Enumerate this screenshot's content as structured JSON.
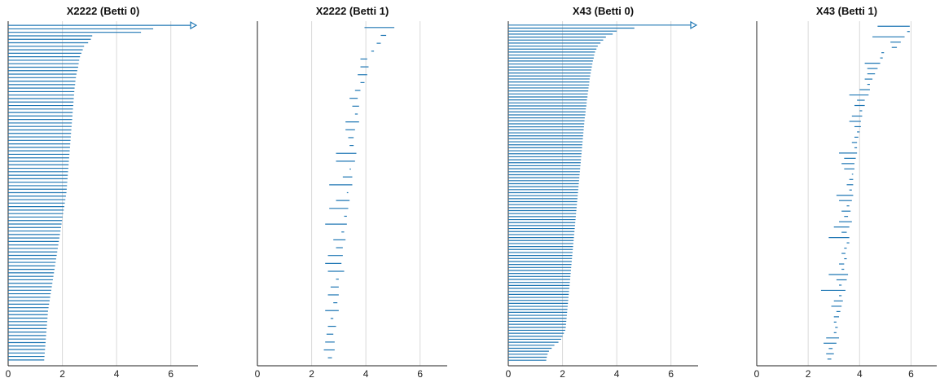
{
  "theme": {
    "bar_color": "#1f77b4",
    "grid_color": "#d9d9d9",
    "axis_color": "#222222"
  },
  "chart_data": [
    {
      "type": "barcode",
      "title": "X2222 (Betti 0)",
      "xlim": [
        0,
        7
      ],
      "xticks": [
        "0",
        "2",
        "4",
        "6"
      ],
      "grid": "vertical",
      "infinite_bar": {
        "start": 0,
        "arrow": true
      },
      "bars": [
        [
          0,
          5.35
        ],
        [
          0,
          4.9
        ],
        [
          0,
          3.1
        ],
        [
          0,
          3.05
        ],
        [
          0,
          2.95
        ],
        [
          0,
          2.8
        ],
        [
          0,
          2.75
        ],
        [
          0,
          2.7
        ],
        [
          0,
          2.65
        ],
        [
          0,
          2.62
        ],
        [
          0,
          2.6
        ],
        [
          0,
          2.58
        ],
        [
          0,
          2.55
        ],
        [
          0,
          2.52
        ],
        [
          0,
          2.5
        ],
        [
          0,
          2.48
        ],
        [
          0,
          2.47
        ],
        [
          0,
          2.45
        ],
        [
          0,
          2.44
        ],
        [
          0,
          2.43
        ],
        [
          0,
          2.42
        ],
        [
          0,
          2.41
        ],
        [
          0,
          2.4
        ],
        [
          0,
          2.39
        ],
        [
          0,
          2.38
        ],
        [
          0,
          2.37
        ],
        [
          0,
          2.36
        ],
        [
          0,
          2.35
        ],
        [
          0,
          2.34
        ],
        [
          0,
          2.33
        ],
        [
          0,
          2.32
        ],
        [
          0,
          2.31
        ],
        [
          0,
          2.3
        ],
        [
          0,
          2.29
        ],
        [
          0,
          2.28
        ],
        [
          0,
          2.27
        ],
        [
          0,
          2.26
        ],
        [
          0,
          2.25
        ],
        [
          0,
          2.24
        ],
        [
          0,
          2.23
        ],
        [
          0,
          2.22
        ],
        [
          0,
          2.21
        ],
        [
          0,
          2.2
        ],
        [
          0,
          2.19
        ],
        [
          0,
          2.18
        ],
        [
          0,
          2.17
        ],
        [
          0,
          2.16
        ],
        [
          0,
          2.15
        ],
        [
          0,
          2.13
        ],
        [
          0,
          2.11
        ],
        [
          0,
          2.09
        ],
        [
          0,
          2.07
        ],
        [
          0,
          2.05
        ],
        [
          0,
          2.03
        ],
        [
          0,
          2.01
        ],
        [
          0,
          1.99
        ],
        [
          0,
          1.97
        ],
        [
          0,
          1.95
        ],
        [
          0,
          1.93
        ],
        [
          0,
          1.91
        ],
        [
          0,
          1.89
        ],
        [
          0,
          1.87
        ],
        [
          0,
          1.85
        ],
        [
          0,
          1.83
        ],
        [
          0,
          1.81
        ],
        [
          0,
          1.79
        ],
        [
          0,
          1.77
        ],
        [
          0,
          1.75
        ],
        [
          0,
          1.73
        ],
        [
          0,
          1.71
        ],
        [
          0,
          1.69
        ],
        [
          0,
          1.67
        ],
        [
          0,
          1.65
        ],
        [
          0,
          1.63
        ],
        [
          0,
          1.61
        ],
        [
          0,
          1.59
        ],
        [
          0,
          1.57
        ],
        [
          0,
          1.55
        ],
        [
          0,
          1.53
        ],
        [
          0,
          1.51
        ],
        [
          0,
          1.49
        ],
        [
          0,
          1.47
        ],
        [
          0,
          1.46
        ],
        [
          0,
          1.45
        ],
        [
          0,
          1.44
        ],
        [
          0,
          1.43
        ],
        [
          0,
          1.42
        ],
        [
          0,
          1.41
        ],
        [
          0,
          1.4
        ],
        [
          0,
          1.39
        ],
        [
          0,
          1.38
        ],
        [
          0,
          1.37
        ],
        [
          0,
          1.36
        ],
        [
          0,
          1.35
        ],
        [
          0,
          1.34
        ],
        [
          0,
          1.33
        ]
      ]
    },
    {
      "type": "barcode",
      "title": "X2222 (Betti 1)",
      "xlim": [
        0,
        7
      ],
      "xticks": [
        "0",
        "2",
        "4",
        "6"
      ],
      "grid": "vertical",
      "bars": [
        [
          3.95,
          5.05
        ],
        [
          4.55,
          4.75
        ],
        [
          4.4,
          4.55
        ],
        [
          4.2,
          4.3
        ],
        [
          3.8,
          4.05
        ],
        [
          3.8,
          4.1
        ],
        [
          3.7,
          4.05
        ],
        [
          3.8,
          3.95
        ],
        [
          3.6,
          3.8
        ],
        [
          3.4,
          3.7
        ],
        [
          3.5,
          3.75
        ],
        [
          3.6,
          3.7
        ],
        [
          3.25,
          3.75
        ],
        [
          3.25,
          3.6
        ],
        [
          3.35,
          3.55
        ],
        [
          3.4,
          3.55
        ],
        [
          2.9,
          3.65
        ],
        [
          2.9,
          3.6
        ],
        [
          3.4,
          3.45
        ],
        [
          3.15,
          3.5
        ],
        [
          2.65,
          3.5
        ],
        [
          3.3,
          3.35
        ],
        [
          2.9,
          3.4
        ],
        [
          2.65,
          3.35
        ],
        [
          3.2,
          3.3
        ],
        [
          2.5,
          3.3
        ],
        [
          3.1,
          3.2
        ],
        [
          2.8,
          3.25
        ],
        [
          2.9,
          3.15
        ],
        [
          2.6,
          3.15
        ],
        [
          2.5,
          3.1
        ],
        [
          2.6,
          3.2
        ],
        [
          2.9,
          3.0
        ],
        [
          2.7,
          3.0
        ],
        [
          2.6,
          3.0
        ],
        [
          2.8,
          2.95
        ],
        [
          2.5,
          3.0
        ],
        [
          2.7,
          2.8
        ],
        [
          2.6,
          2.9
        ],
        [
          2.55,
          2.8
        ],
        [
          2.5,
          2.85
        ],
        [
          2.45,
          2.85
        ],
        [
          2.6,
          2.75
        ]
      ]
    },
    {
      "type": "barcode",
      "title": "X43 (Betti 0)",
      "xlim": [
        0,
        7
      ],
      "xticks": [
        "0",
        "2",
        "4",
        "6"
      ],
      "grid": "vertical",
      "infinite_bar": {
        "start": 0,
        "arrow": true
      },
      "bars": [
        [
          0,
          4.65
        ],
        [
          0,
          4.0
        ],
        [
          0,
          3.85
        ],
        [
          0,
          3.6
        ],
        [
          0,
          3.5
        ],
        [
          0,
          3.4
        ],
        [
          0,
          3.3
        ],
        [
          0,
          3.25
        ],
        [
          0,
          3.2
        ],
        [
          0,
          3.17
        ],
        [
          0,
          3.15
        ],
        [
          0,
          3.12
        ],
        [
          0,
          3.1
        ],
        [
          0,
          3.08
        ],
        [
          0,
          3.06
        ],
        [
          0,
          3.04
        ],
        [
          0,
          3.02
        ],
        [
          0,
          3.0
        ],
        [
          0,
          2.99
        ],
        [
          0,
          2.98
        ],
        [
          0,
          2.96
        ],
        [
          0,
          2.95
        ],
        [
          0,
          2.93
        ],
        [
          0,
          2.92
        ],
        [
          0,
          2.9
        ],
        [
          0,
          2.89
        ],
        [
          0,
          2.88
        ],
        [
          0,
          2.86
        ],
        [
          0,
          2.85
        ],
        [
          0,
          2.84
        ],
        [
          0,
          2.82
        ],
        [
          0,
          2.81
        ],
        [
          0,
          2.8
        ],
        [
          0,
          2.79
        ],
        [
          0,
          2.78
        ],
        [
          0,
          2.77
        ],
        [
          0,
          2.76
        ],
        [
          0,
          2.75
        ],
        [
          0,
          2.74
        ],
        [
          0,
          2.73
        ],
        [
          0,
          2.72
        ],
        [
          0,
          2.71
        ],
        [
          0,
          2.7
        ],
        [
          0,
          2.69
        ],
        [
          0,
          2.68
        ],
        [
          0,
          2.67
        ],
        [
          0,
          2.66
        ],
        [
          0,
          2.65
        ],
        [
          0,
          2.64
        ],
        [
          0,
          2.63
        ],
        [
          0,
          2.62
        ],
        [
          0,
          2.61
        ],
        [
          0,
          2.6
        ],
        [
          0,
          2.59
        ],
        [
          0,
          2.58
        ],
        [
          0,
          2.57
        ],
        [
          0,
          2.56
        ],
        [
          0,
          2.55
        ],
        [
          0,
          2.54
        ],
        [
          0,
          2.53
        ],
        [
          0,
          2.52
        ],
        [
          0,
          2.51
        ],
        [
          0,
          2.5
        ],
        [
          0,
          2.49
        ],
        [
          0,
          2.48
        ],
        [
          0,
          2.47
        ],
        [
          0,
          2.46
        ],
        [
          0,
          2.45
        ],
        [
          0,
          2.44
        ],
        [
          0,
          2.43
        ],
        [
          0,
          2.42
        ],
        [
          0,
          2.41
        ],
        [
          0,
          2.4
        ],
        [
          0,
          2.39
        ],
        [
          0,
          2.38
        ],
        [
          0,
          2.37
        ],
        [
          0,
          2.36
        ],
        [
          0,
          2.35
        ],
        [
          0,
          2.34
        ],
        [
          0,
          2.33
        ],
        [
          0,
          2.32
        ],
        [
          0,
          2.31
        ],
        [
          0,
          2.3
        ],
        [
          0,
          2.29
        ],
        [
          0,
          2.28
        ],
        [
          0,
          2.27
        ],
        [
          0,
          2.26
        ],
        [
          0,
          2.25
        ],
        [
          0,
          2.24
        ],
        [
          0,
          2.23
        ],
        [
          0,
          2.22
        ],
        [
          0,
          2.21
        ],
        [
          0,
          2.2
        ],
        [
          0,
          2.19
        ],
        [
          0,
          2.18
        ],
        [
          0,
          2.17
        ],
        [
          0,
          2.16
        ],
        [
          0,
          2.15
        ],
        [
          0,
          2.14
        ],
        [
          0,
          2.13
        ],
        [
          0,
          2.12
        ],
        [
          0,
          2.1
        ],
        [
          0,
          2.05
        ],
        [
          0,
          2.0
        ],
        [
          0,
          1.95
        ],
        [
          0,
          1.85
        ],
        [
          0,
          1.7
        ],
        [
          0,
          1.6
        ],
        [
          0,
          1.5
        ],
        [
          0,
          1.45
        ],
        [
          0,
          1.42
        ],
        [
          0,
          1.4
        ]
      ]
    },
    {
      "type": "barcode",
      "title": "X43 (Betti 1)",
      "xlim": [
        0,
        7
      ],
      "xticks": [
        "0",
        "2",
        "4",
        "6"
      ],
      "grid": "vertical",
      "bars": [
        [
          4.7,
          5.95
        ],
        [
          5.85,
          5.95
        ],
        [
          4.5,
          5.75
        ],
        [
          5.2,
          5.6
        ],
        [
          5.25,
          5.45
        ],
        [
          4.85,
          4.95
        ],
        [
          4.8,
          4.9
        ],
        [
          4.2,
          4.8
        ],
        [
          4.3,
          4.7
        ],
        [
          4.3,
          4.6
        ],
        [
          4.2,
          4.5
        ],
        [
          4.3,
          4.4
        ],
        [
          4.0,
          4.4
        ],
        [
          3.6,
          4.35
        ],
        [
          3.9,
          4.2
        ],
        [
          3.8,
          4.2
        ],
        [
          4.0,
          4.1
        ],
        [
          3.7,
          4.1
        ],
        [
          3.6,
          4.05
        ],
        [
          3.8,
          4.05
        ],
        [
          3.9,
          4.0
        ],
        [
          3.8,
          3.95
        ],
        [
          3.7,
          3.9
        ],
        [
          3.8,
          3.9
        ],
        [
          3.2,
          3.9
        ],
        [
          3.4,
          3.85
        ],
        [
          3.3,
          3.8
        ],
        [
          3.4,
          3.8
        ],
        [
          3.7,
          3.75
        ],
        [
          3.6,
          3.75
        ],
        [
          3.5,
          3.75
        ],
        [
          3.6,
          3.7
        ],
        [
          3.1,
          3.75
        ],
        [
          3.2,
          3.7
        ],
        [
          3.5,
          3.6
        ],
        [
          3.3,
          3.65
        ],
        [
          3.4,
          3.55
        ],
        [
          3.2,
          3.7
        ],
        [
          3.0,
          3.6
        ],
        [
          3.3,
          3.5
        ],
        [
          2.8,
          3.6
        ],
        [
          3.5,
          3.6
        ],
        [
          3.4,
          3.5
        ],
        [
          3.3,
          3.45
        ],
        [
          3.4,
          3.5
        ],
        [
          3.2,
          3.4
        ],
        [
          3.3,
          3.4
        ],
        [
          2.8,
          3.55
        ],
        [
          3.1,
          3.5
        ],
        [
          3.2,
          3.3
        ],
        [
          2.5,
          3.45
        ],
        [
          3.2,
          3.3
        ],
        [
          3.0,
          3.35
        ],
        [
          2.9,
          3.3
        ],
        [
          3.1,
          3.25
        ],
        [
          3.0,
          3.2
        ],
        [
          3.0,
          3.1
        ],
        [
          3.05,
          3.15
        ],
        [
          3.0,
          3.1
        ],
        [
          2.7,
          3.2
        ],
        [
          2.6,
          3.1
        ],
        [
          2.8,
          2.95
        ],
        [
          2.7,
          3.0
        ],
        [
          2.75,
          2.9
        ]
      ]
    }
  ]
}
